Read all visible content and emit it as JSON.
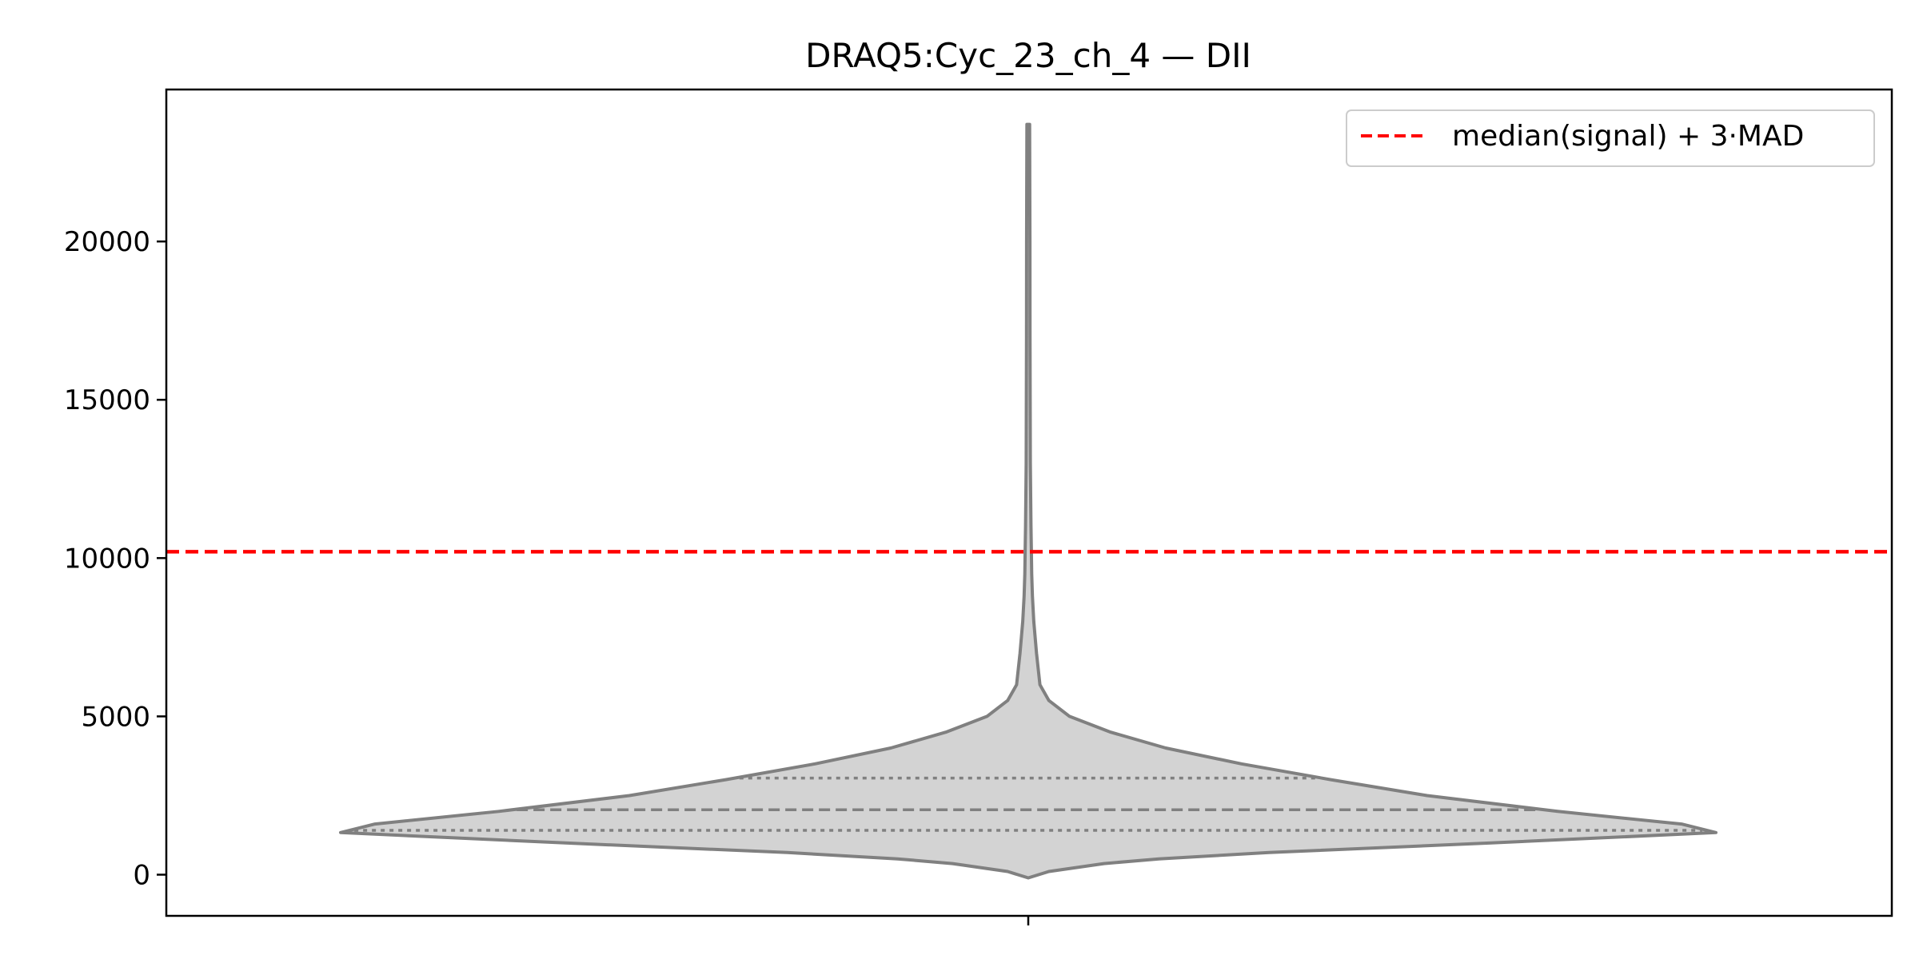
{
  "chart_data": {
    "type": "violin",
    "title": "DRAQ5:Cyc_23_ch_4 — DII",
    "xlabel": "",
    "ylabel": "",
    "ylim": [
      -1300,
      24800
    ],
    "yticks": [
      0,
      5000,
      10000,
      15000,
      20000
    ],
    "ytick_labels": [
      "0",
      "5000",
      "10000",
      "15000",
      "20000"
    ],
    "grid": false,
    "legend": {
      "position": "top-right",
      "entries": [
        "median(signal) + 3·MAD"
      ]
    },
    "threshold": {
      "label": "median(signal) + 3·MAD",
      "value": 10200,
      "color": "#ff0000",
      "style": "dashed"
    },
    "violin": {
      "fill": "#d3d3d3",
      "edge": "#808080",
      "min": -100,
      "max": 23700,
      "quartiles": {
        "q1": 1400,
        "median": 2050,
        "q3": 3050
      },
      "profile_y": [
        -100,
        100,
        350,
        500,
        700,
        1000,
        1330,
        1600,
        2000,
        2500,
        3000,
        3500,
        4000,
        4500,
        5000,
        5500,
        6000,
        7000,
        8000,
        8800,
        9500,
        10200,
        11000,
        12000,
        13000,
        15000,
        17000,
        20000,
        23700
      ],
      "profile_halfwidth": [
        0.0,
        0.03,
        0.11,
        0.19,
        0.35,
        0.67,
        1.0,
        0.95,
        0.77,
        0.58,
        0.44,
        0.31,
        0.2,
        0.12,
        0.06,
        0.03,
        0.017,
        0.012,
        0.008,
        0.006,
        0.005,
        0.0045,
        0.004,
        0.0035,
        0.003,
        0.0028,
        0.0026,
        0.0024,
        0.002
      ]
    }
  }
}
